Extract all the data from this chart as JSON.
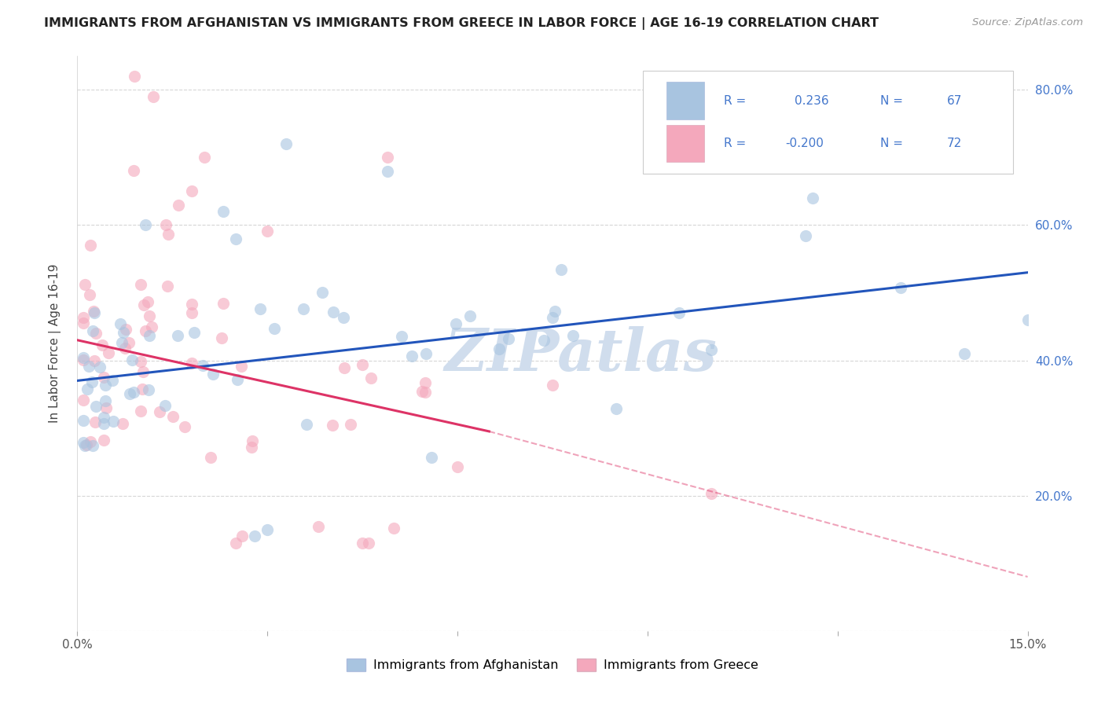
{
  "title": "IMMIGRANTS FROM AFGHANISTAN VS IMMIGRANTS FROM GREECE IN LABOR FORCE | AGE 16-19 CORRELATION CHART",
  "source": "Source: ZipAtlas.com",
  "ylabel": "In Labor Force | Age 16-19",
  "r_afghan": 0.236,
  "n_afghan": 67,
  "r_greece": -0.2,
  "n_greece": 72,
  "xmin": 0.0,
  "xmax": 0.15,
  "ymin": 0.0,
  "ymax": 0.85,
  "color_afghan": "#a8c4e0",
  "color_greece": "#f4a8bc",
  "line_color_afghan": "#2255bb",
  "line_color_greece": "#dd3366",
  "background_color": "#ffffff",
  "watermark_text": "ZIPatlas",
  "watermark_color": "#d0dded",
  "legend_text_color": "#4477cc",
  "legend_value_color": "#4477cc",
  "legend_border_color": "#cccccc",
  "right_axis_color": "#4477cc",
  "af_line_x0": 0.0,
  "af_line_y0": 0.37,
  "af_line_x1": 0.15,
  "af_line_y1": 0.53,
  "gr_line_x0": 0.0,
  "gr_line_y0": 0.43,
  "gr_line_x1_solid": 0.065,
  "gr_line_y1_solid": 0.295,
  "gr_line_x1_dash": 0.15,
  "gr_line_y1_dash": 0.08
}
